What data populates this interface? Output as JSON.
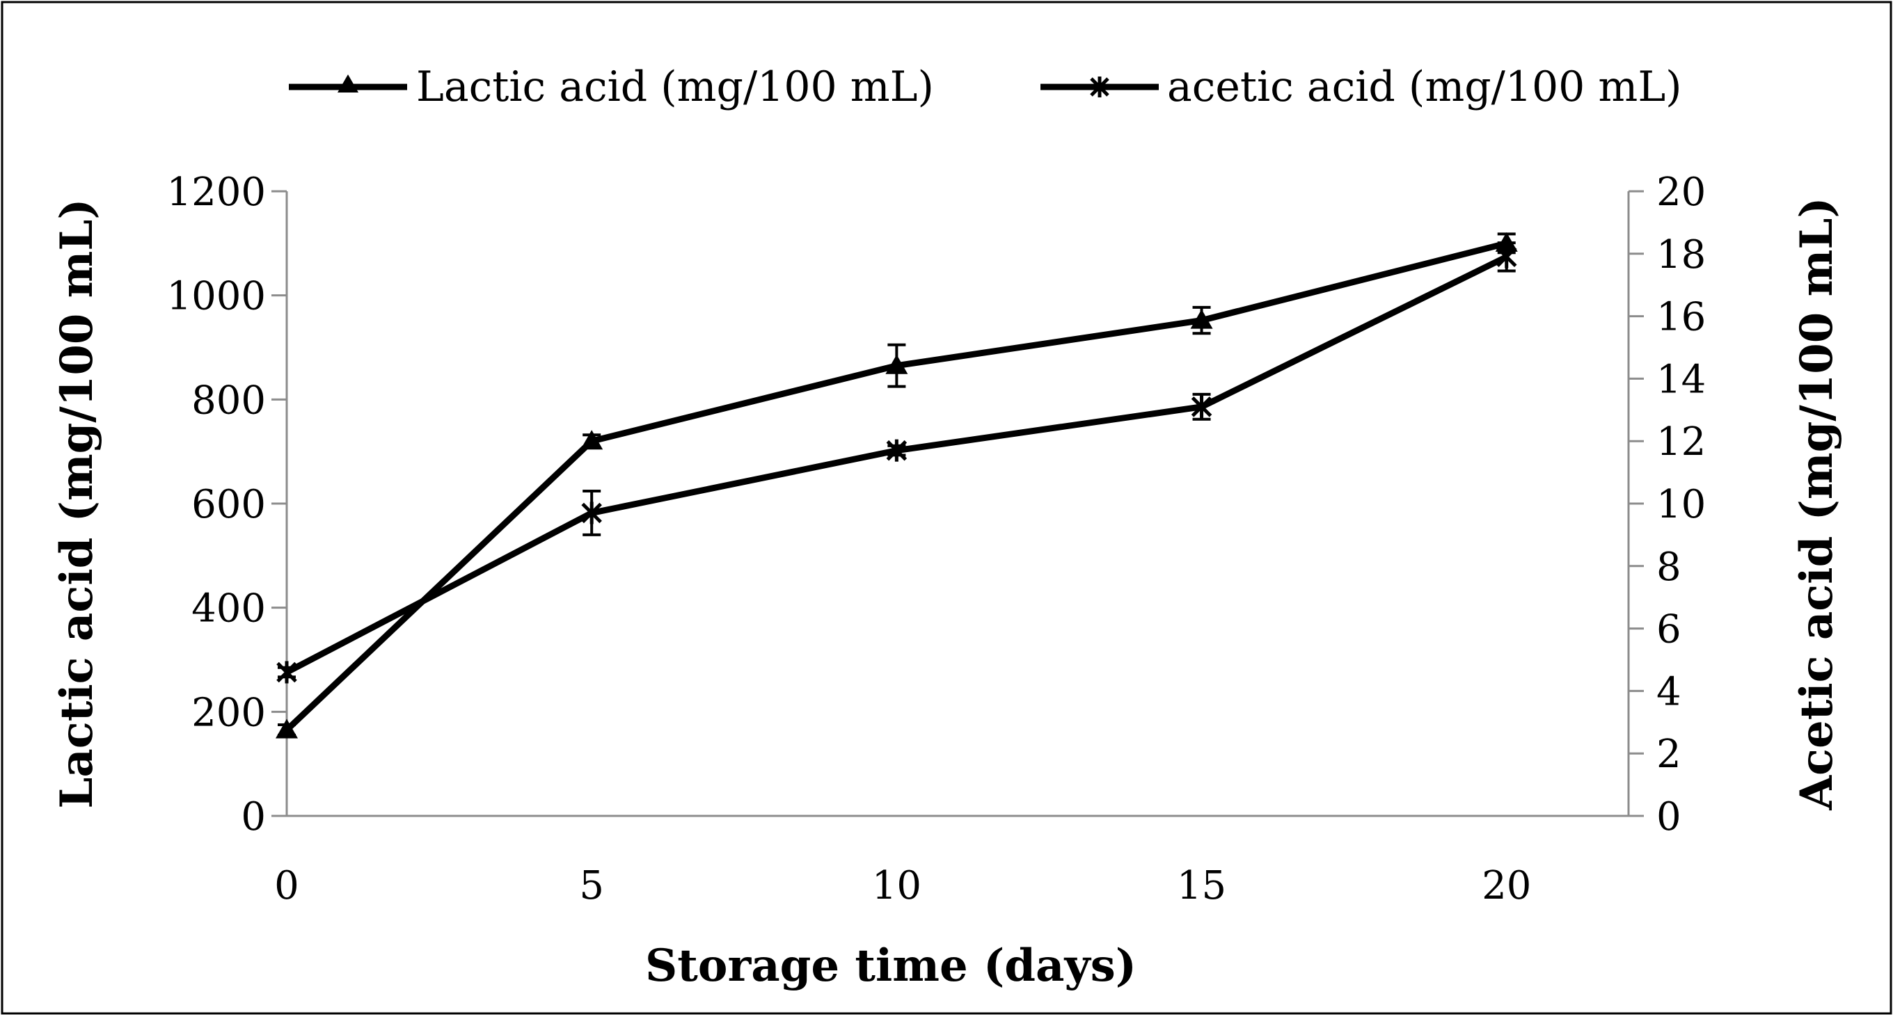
{
  "chart_data": {
    "type": "line",
    "x": [
      0,
      5,
      10,
      15,
      20
    ],
    "xlabel": "Storage time (days)",
    "ylabel": "Lactic acid (mg/100 mL)",
    "y2label": "Acetic acid (mg/100 mL)",
    "xlim": [
      0,
      22
    ],
    "ylim": [
      0,
      1200
    ],
    "y2lim": [
      0,
      20
    ],
    "xticks": [
      "0",
      "5",
      "10",
      "15",
      "20"
    ],
    "yticks": [
      "0",
      "200",
      "400",
      "600",
      "800",
      "1000",
      "1200"
    ],
    "y2ticks": [
      "0",
      "2",
      "4",
      "6",
      "8",
      "10",
      "12",
      "14",
      "16",
      "18",
      "20"
    ],
    "grid": false,
    "legend_position": "top",
    "series": [
      {
        "name": "Lactic acid (mg/100 mL)",
        "axis": "left",
        "marker": "triangle",
        "values": [
          165,
          720,
          865,
          952,
          1100
        ],
        "errors": [
          10,
          12,
          40,
          25,
          18
        ]
      },
      {
        "name": "acetic acid (mg/100 mL)",
        "axis": "right",
        "marker": "asterisk",
        "values": [
          4.6,
          9.7,
          11.7,
          13.1,
          17.9
        ],
        "errors": [
          0.15,
          0.7,
          0.15,
          0.4,
          0.45
        ]
      }
    ]
  }
}
